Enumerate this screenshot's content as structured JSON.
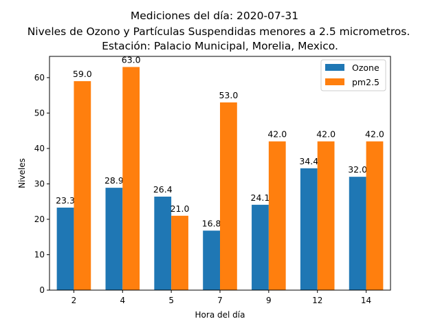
{
  "chart_data": {
    "type": "bar",
    "title_lines": [
      "Mediciones del día: 2020-07-31",
      "Niveles de Ozono y Partículas Suspendidas menores a 2.5 micrometros.",
      "Estación: Palacio Municipal, Morelia, Mexico."
    ],
    "xlabel": "Hora del día",
    "ylabel": "Niveles",
    "categories": [
      "2",
      "4",
      "5",
      "7",
      "9",
      "12",
      "14"
    ],
    "series": [
      {
        "name": "Ozone",
        "color": "#1f77b4",
        "values": [
          23.3,
          28.9,
          26.4,
          16.8,
          24.1,
          34.4,
          32.0
        ],
        "labels": [
          "23.3",
          "28.9",
          "26.4",
          "16.8",
          "24.1",
          "34.4",
          "32.0"
        ]
      },
      {
        "name": "pm2.5",
        "color": "#ff7f0e",
        "values": [
          59.0,
          63.0,
          21.0,
          53.0,
          42.0,
          42.0,
          42.0
        ],
        "labels": [
          "59.0",
          "63.0",
          "21.0",
          "53.0",
          "42.0",
          "42.0",
          "42.0"
        ]
      }
    ],
    "ylim": [
      0,
      66
    ],
    "yticks": [
      "0",
      "10",
      "20",
      "30",
      "40",
      "50",
      "60"
    ],
    "grid": false,
    "legend_position": "top-right"
  }
}
